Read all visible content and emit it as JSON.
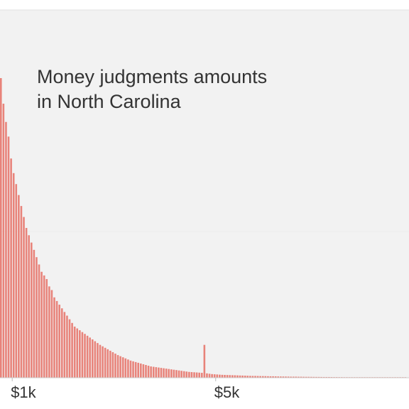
{
  "chart_data": {
    "type": "bar",
    "title_lines": [
      "Money judgments amounts",
      "in North Carolina"
    ],
    "xlabel": "",
    "ylabel": "",
    "x_axis": {
      "ticks": [
        {
          "label": "$1k",
          "value": 1000
        },
        {
          "label": "$5k",
          "value": 5000
        }
      ],
      "visible_range": [
        760,
        8800
      ]
    },
    "grid": true,
    "bar_color": "#e8837a",
    "background_color": "#f2f2f2",
    "bin_width": 50,
    "series": [
      {
        "values": [
          82,
          75,
          70,
          66,
          60,
          56,
          53,
          50,
          47,
          44,
          41,
          39,
          37,
          35,
          33,
          31,
          29,
          28,
          27,
          25,
          24,
          22,
          21,
          20,
          19,
          18,
          17,
          16,
          15,
          14,
          13.5,
          13,
          12.5,
          12,
          11.5,
          11,
          10.5,
          10,
          9.5,
          9,
          8.6,
          8.2,
          7.8,
          7.4,
          7,
          6.6,
          6.2,
          5.9,
          5.6,
          5.3,
          5,
          4.7,
          4.5,
          4.3,
          4.1,
          3.9,
          3.7,
          3.5,
          3.3,
          3.1,
          3,
          2.9,
          2.8,
          2.7,
          2.6,
          2.5,
          2.4,
          2.3,
          2.2,
          2.1,
          2,
          1.9,
          1.8,
          1.7,
          1.6,
          1.55,
          1.5,
          1.45,
          1.4,
          1.35,
          9,
          1.2,
          1.1,
          1,
          0.95,
          0.9,
          0.85,
          0.8,
          0.78,
          0.75,
          0.72,
          0.7,
          0.68,
          0.65,
          0.62,
          0.6,
          0.58,
          0.55,
          0.52,
          0.5,
          0.5,
          0.48,
          0.46,
          0.45,
          0.44,
          0.42,
          0.4,
          0.4,
          0.38,
          0.36,
          0.35,
          0.34,
          0.33,
          0.32,
          0.3,
          0.3,
          0.3,
          0.28,
          0.28,
          0.26,
          0.25,
          0.25,
          0.24,
          0.23,
          0.22,
          0.22,
          0.21,
          0.2,
          0.2,
          0.2,
          0.19,
          0.18,
          0.18,
          0.17,
          0.17,
          0.16,
          0.16,
          0.15,
          0.15,
          0.15,
          0.14,
          0.14,
          0.13,
          0.13,
          0.12,
          0.12,
          0.12,
          0.11,
          0.11,
          0.1,
          0.1,
          0.1,
          0.1,
          0.1,
          0.1,
          0.1,
          0.1,
          0.1,
          0.1,
          0.1
        ]
      }
    ]
  }
}
